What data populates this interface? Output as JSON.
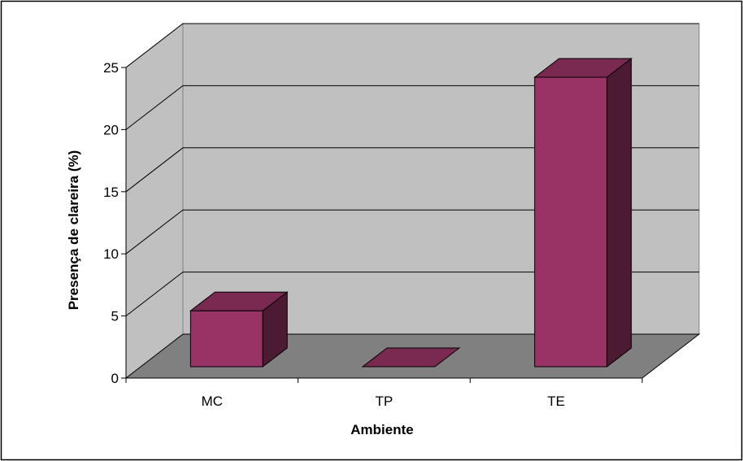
{
  "chart_data": {
    "type": "bar",
    "three_d": true,
    "categories": [
      "MC",
      "TP",
      "TE"
    ],
    "values": [
      4.5,
      0,
      23.3
    ],
    "xlabel": "Ambiente",
    "ylabel": "Presença de clareira (%)",
    "ylim": [
      0,
      25
    ],
    "yticks": [
      0,
      5,
      10,
      15,
      20,
      25
    ],
    "grid": true,
    "legend": "none"
  },
  "colors": {
    "bar_front": "#993366",
    "bar_top": "#7a2950",
    "bar_side": "#4d1a33",
    "back_wall": "#c0c0c0",
    "side_wall": "#c0c0c0",
    "floor": "#808080",
    "frame": "#000000"
  }
}
